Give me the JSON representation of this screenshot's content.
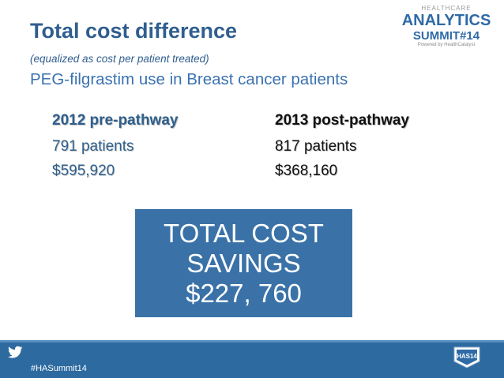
{
  "header": {
    "title": "Total cost difference",
    "subtitle": "(equalized as cost per patient treated)",
    "topic": "PEG-filgrastim use in Breast cancer patients"
  },
  "comparison": {
    "left": {
      "heading": "2012 pre-pathway",
      "patients": "791 patients",
      "cost": "$595,920"
    },
    "right": {
      "heading": "2013 post-pathway",
      "patients": "817 patients",
      "cost": "$368,160"
    }
  },
  "savings": {
    "line1": "TOTAL COST",
    "line2": "SAVINGS",
    "line3": "$227, 760"
  },
  "logo": {
    "line1": "HEALTHCARE",
    "line2": "ANALYTICS",
    "line3": "SUMMIT#14",
    "line4": "Powered by HealthCatalyst",
    "icon": "summit-logo-icon"
  },
  "footer": {
    "hashtag": "#HASummit14",
    "badge_text": "HAS14",
    "icons": [
      "twitter-bird-icon",
      "has14-badge-icon"
    ]
  },
  "colors": {
    "title": "#2f5e8f",
    "box": "#3a72a8",
    "footer": "#2c6aa0"
  }
}
